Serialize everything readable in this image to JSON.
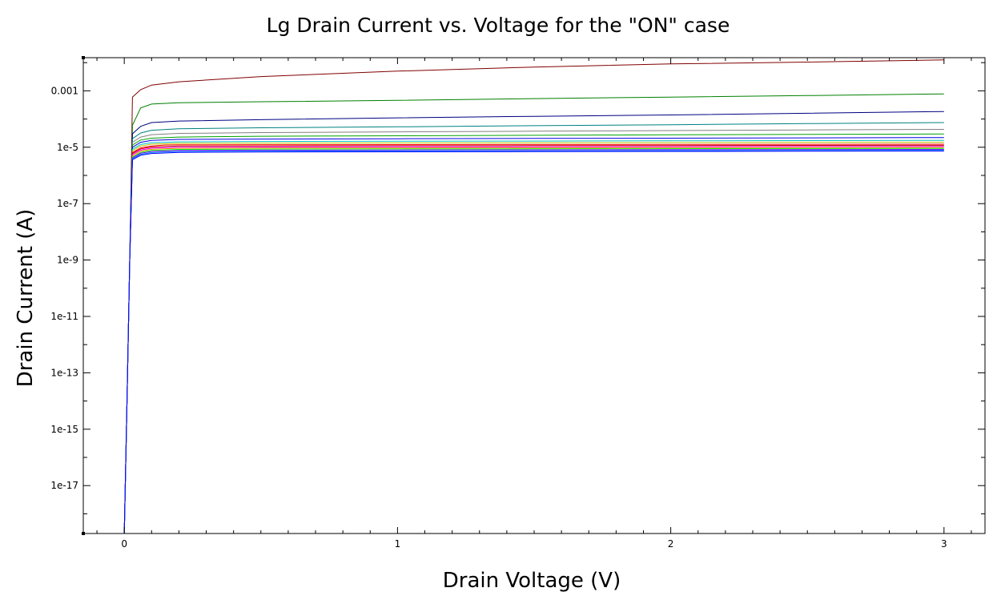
{
  "chart_data": {
    "type": "line",
    "title": "Lg Drain Current vs. Voltage for the \"ON\" case",
    "xlabel": "Drain Voltage (V)",
    "ylabel": "Drain Current (A)",
    "yscale": "log",
    "xlim": [
      -0.15,
      3.15
    ],
    "ylim": [
      2e-19,
      0.015
    ],
    "x_ticks": [
      {
        "value": 0,
        "label": "0"
      },
      {
        "value": 1,
        "label": "1"
      },
      {
        "value": 2,
        "label": "2"
      },
      {
        "value": 3,
        "label": "3"
      }
    ],
    "y_ticks": [
      {
        "value": 1e-17,
        "label": "1e-17"
      },
      {
        "value": 1e-15,
        "label": "1e-15"
      },
      {
        "value": 1e-13,
        "label": "1e-13"
      },
      {
        "value": 1e-11,
        "label": "1e-11"
      },
      {
        "value": 1e-09,
        "label": "1e-9"
      },
      {
        "value": 1e-07,
        "label": "1e-7"
      },
      {
        "value": 1e-05,
        "label": "1e-5"
      },
      {
        "value": 0.001,
        "label": "0.001"
      }
    ],
    "grid": false,
    "legend": "none",
    "series": [
      {
        "color": "#800000",
        "values": [
          [
            0,
            2e-19
          ],
          [
            0.01,
            1e-14
          ],
          [
            0.02,
            1e-09
          ],
          [
            0.03,
            0.0006
          ],
          [
            0.06,
            0.0011
          ],
          [
            0.1,
            0.0016
          ],
          [
            0.2,
            0.0021
          ],
          [
            0.5,
            0.0032
          ],
          [
            1,
            0.005
          ],
          [
            1.5,
            0.007
          ],
          [
            2,
            0.009
          ],
          [
            2.5,
            0.0105
          ],
          [
            3,
            0.0125
          ]
        ]
      },
      {
        "color": "#008000",
        "values": [
          [
            0,
            2e-19
          ],
          [
            0.01,
            1e-14
          ],
          [
            0.02,
            1e-09
          ],
          [
            0.03,
            6e-05
          ],
          [
            0.06,
            0.00025
          ],
          [
            0.1,
            0.00034
          ],
          [
            0.2,
            0.00038
          ],
          [
            0.5,
            0.00041
          ],
          [
            1,
            0.00046
          ],
          [
            1.5,
            0.00053
          ],
          [
            2,
            0.0006
          ],
          [
            2.5,
            0.00068
          ],
          [
            3,
            0.00078
          ]
        ]
      },
      {
        "color": "#000080",
        "values": [
          [
            0,
            2e-19
          ],
          [
            0.01,
            1e-14
          ],
          [
            0.02,
            1e-09
          ],
          [
            0.03,
            3e-05
          ],
          [
            0.06,
            5.5e-05
          ],
          [
            0.1,
            7.5e-05
          ],
          [
            0.2,
            8.5e-05
          ],
          [
            0.5,
            9.5e-05
          ],
          [
            1,
            0.00011
          ],
          [
            1.5,
            0.000125
          ],
          [
            2,
            0.00014
          ],
          [
            2.5,
            0.00016
          ],
          [
            3,
            0.000185
          ]
        ]
      },
      {
        "color": "#008080",
        "values": [
          [
            0,
            2e-19
          ],
          [
            0.01,
            1e-14
          ],
          [
            0.02,
            1e-09
          ],
          [
            0.03,
            2e-05
          ],
          [
            0.06,
            3.2e-05
          ],
          [
            0.1,
            4e-05
          ],
          [
            0.2,
            4.5e-05
          ],
          [
            0.5,
            4.9e-05
          ],
          [
            1,
            5.3e-05
          ],
          [
            1.5,
            5.8e-05
          ],
          [
            2,
            6.3e-05
          ],
          [
            2.5,
            6.9e-05
          ],
          [
            3,
            7.5e-05
          ]
        ]
      },
      {
        "color": "#808080",
        "values": [
          [
            0,
            2e-19
          ],
          [
            0.01,
            1e-14
          ],
          [
            0.02,
            1e-09
          ],
          [
            0.03,
            1.5e-05
          ],
          [
            0.06,
            2.3e-05
          ],
          [
            0.1,
            2.8e-05
          ],
          [
            0.2,
            3.1e-05
          ],
          [
            0.5,
            3.3e-05
          ],
          [
            1,
            3.5e-05
          ],
          [
            1.5,
            3.7e-05
          ],
          [
            2,
            3.9e-05
          ],
          [
            2.5,
            4.1e-05
          ],
          [
            3,
            4.3e-05
          ]
        ]
      },
      {
        "color": "#00a000",
        "values": [
          [
            0,
            2e-19
          ],
          [
            0.01,
            1e-14
          ],
          [
            0.02,
            1e-09
          ],
          [
            0.03,
            1.2e-05
          ],
          [
            0.06,
            1.8e-05
          ],
          [
            0.1,
            2.1e-05
          ],
          [
            0.2,
            2.3e-05
          ],
          [
            0.5,
            2.45e-05
          ],
          [
            1,
            2.55e-05
          ],
          [
            1.5,
            2.65e-05
          ],
          [
            2,
            2.75e-05
          ],
          [
            2.5,
            2.85e-05
          ],
          [
            3,
            2.95e-05
          ]
        ]
      },
      {
        "color": "#0000e0",
        "values": [
          [
            0,
            2e-19
          ],
          [
            0.01,
            1e-14
          ],
          [
            0.02,
            1e-09
          ],
          [
            0.03,
            1e-05
          ],
          [
            0.06,
            1.5e-05
          ],
          [
            0.1,
            1.75e-05
          ],
          [
            0.2,
            1.9e-05
          ],
          [
            0.5,
            1.95e-05
          ],
          [
            1,
            2e-05
          ],
          [
            1.5,
            2.05e-05
          ],
          [
            2,
            2.1e-05
          ],
          [
            2.5,
            2.15e-05
          ],
          [
            3,
            2.2e-05
          ]
        ]
      },
      {
        "color": "#00c0c0",
        "values": [
          [
            0,
            2e-19
          ],
          [
            0.01,
            1e-14
          ],
          [
            0.02,
            1e-09
          ],
          [
            0.03,
            8.5e-06
          ],
          [
            0.06,
            1.25e-05
          ],
          [
            0.1,
            1.45e-05
          ],
          [
            0.2,
            1.55e-05
          ],
          [
            0.5,
            1.6e-05
          ],
          [
            1,
            1.63e-05
          ],
          [
            1.5,
            1.66e-05
          ],
          [
            2,
            1.69e-05
          ],
          [
            2.5,
            1.72e-05
          ],
          [
            3,
            1.75e-05
          ]
        ]
      },
      {
        "color": "#c0c000",
        "values": [
          [
            0,
            2e-19
          ],
          [
            0.01,
            1e-14
          ],
          [
            0.02,
            1e-09
          ],
          [
            0.03,
            7.5e-06
          ],
          [
            0.06,
            1.1e-05
          ],
          [
            0.1,
            1.28e-05
          ],
          [
            0.2,
            1.37e-05
          ],
          [
            0.5,
            1.4e-05
          ],
          [
            1,
            1.42e-05
          ],
          [
            1.5,
            1.44e-05
          ],
          [
            2,
            1.46e-05
          ],
          [
            2.5,
            1.48e-05
          ],
          [
            3,
            1.5e-05
          ]
        ]
      },
      {
        "color": "#ff0000",
        "values": [
          [
            0,
            2e-19
          ],
          [
            0.01,
            1e-14
          ],
          [
            0.02,
            1e-09
          ],
          [
            0.03,
            6.5e-06
          ],
          [
            0.06,
            9.5e-06
          ],
          [
            0.1,
            1.1e-05
          ],
          [
            0.15,
            1.2e-05
          ],
          [
            0.2,
            1.22e-05
          ],
          [
            0.5,
            1.23e-05
          ],
          [
            1,
            1.24e-05
          ],
          [
            1.5,
            1.25e-05
          ],
          [
            2,
            1.26e-05
          ],
          [
            2.5,
            1.27e-05
          ],
          [
            3,
            1.28e-05
          ]
        ]
      },
      {
        "color": "#c00000",
        "values": [
          [
            0,
            2e-19
          ],
          [
            0.01,
            1e-14
          ],
          [
            0.02,
            1e-09
          ],
          [
            0.03,
            6e-06
          ],
          [
            0.06,
            8.8e-06
          ],
          [
            0.1,
            1.02e-05
          ],
          [
            0.2,
            1.1e-05
          ],
          [
            0.5,
            1.12e-05
          ],
          [
            1,
            1.13e-05
          ],
          [
            1.5,
            1.14e-05
          ],
          [
            2,
            1.15e-05
          ],
          [
            2.5,
            1.16e-05
          ],
          [
            3,
            1.17e-05
          ]
        ]
      },
      {
        "color": "#ff00ff",
        "values": [
          [
            0,
            2e-19
          ],
          [
            0.01,
            1e-14
          ],
          [
            0.02,
            1e-09
          ],
          [
            0.03,
            5.5e-06
          ],
          [
            0.06,
            8e-06
          ],
          [
            0.1,
            9.3e-06
          ],
          [
            0.2,
            1e-05
          ],
          [
            0.5,
            1.02e-05
          ],
          [
            1,
            1.03e-05
          ],
          [
            1.5,
            1.04e-05
          ],
          [
            2,
            1.05e-05
          ],
          [
            2.5,
            1.06e-05
          ],
          [
            3,
            1.07e-05
          ]
        ]
      },
      {
        "color": "#ff8000",
        "values": [
          [
            0,
            2e-19
          ],
          [
            0.01,
            1e-14
          ],
          [
            0.02,
            1e-09
          ],
          [
            0.03,
            5e-06
          ],
          [
            0.06,
            7.3e-06
          ],
          [
            0.1,
            8.5e-06
          ],
          [
            0.2,
            9.2e-06
          ],
          [
            0.5,
            9.4e-06
          ],
          [
            1,
            9.5e-06
          ],
          [
            1.5,
            9.6e-06
          ],
          [
            2,
            9.7e-06
          ],
          [
            2.5,
            9.8e-06
          ],
          [
            3,
            9.9e-06
          ]
        ]
      },
      {
        "color": "#00ff00",
        "values": [
          [
            0,
            2e-19
          ],
          [
            0.01,
            1e-14
          ],
          [
            0.02,
            1e-09
          ],
          [
            0.03,
            4.5e-06
          ],
          [
            0.06,
            6.6e-06
          ],
          [
            0.1,
            7.7e-06
          ],
          [
            0.2,
            8.4e-06
          ],
          [
            0.5,
            8.6e-06
          ],
          [
            1,
            8.7e-06
          ],
          [
            1.5,
            8.8e-06
          ],
          [
            2,
            8.9e-06
          ],
          [
            2.5,
            9e-06
          ],
          [
            3,
            9.1e-06
          ]
        ]
      },
      {
        "color": "#8000ff",
        "values": [
          [
            0,
            2e-19
          ],
          [
            0.01,
            1e-14
          ],
          [
            0.02,
            1e-09
          ],
          [
            0.03,
            4.2e-06
          ],
          [
            0.06,
            6.1e-06
          ],
          [
            0.1,
            7.1e-06
          ],
          [
            0.2,
            7.7e-06
          ],
          [
            0.5,
            7.9e-06
          ],
          [
            1,
            8e-06
          ],
          [
            1.5,
            8.1e-06
          ],
          [
            2,
            8.2e-06
          ],
          [
            2.5,
            8.3e-06
          ],
          [
            3,
            8.4e-06
          ]
        ]
      },
      {
        "color": "#0080ff",
        "values": [
          [
            0,
            2e-19
          ],
          [
            0.01,
            1e-14
          ],
          [
            0.02,
            1e-09
          ],
          [
            0.03,
            3.9e-06
          ],
          [
            0.06,
            5.6e-06
          ],
          [
            0.1,
            6.5e-06
          ],
          [
            0.2,
            7.1e-06
          ],
          [
            0.5,
            7.3e-06
          ],
          [
            1,
            7.4e-06
          ],
          [
            1.5,
            7.5e-06
          ],
          [
            2,
            7.6e-06
          ],
          [
            2.5,
            7.7e-06
          ],
          [
            3,
            7.8e-06
          ]
        ]
      },
      {
        "color": "#0000ff",
        "values": [
          [
            0,
            2e-19
          ],
          [
            0.01,
            1e-14
          ],
          [
            0.02,
            1e-09
          ],
          [
            0.03,
            3.6e-06
          ],
          [
            0.06,
            5.2e-06
          ],
          [
            0.1,
            6e-06
          ],
          [
            0.2,
            6.6e-06
          ],
          [
            0.5,
            6.8e-06
          ],
          [
            1,
            6.9e-06
          ],
          [
            1.5,
            7e-06
          ],
          [
            2,
            7.1e-06
          ],
          [
            2.5,
            7.2e-06
          ],
          [
            3,
            7.3e-06
          ]
        ]
      }
    ]
  }
}
